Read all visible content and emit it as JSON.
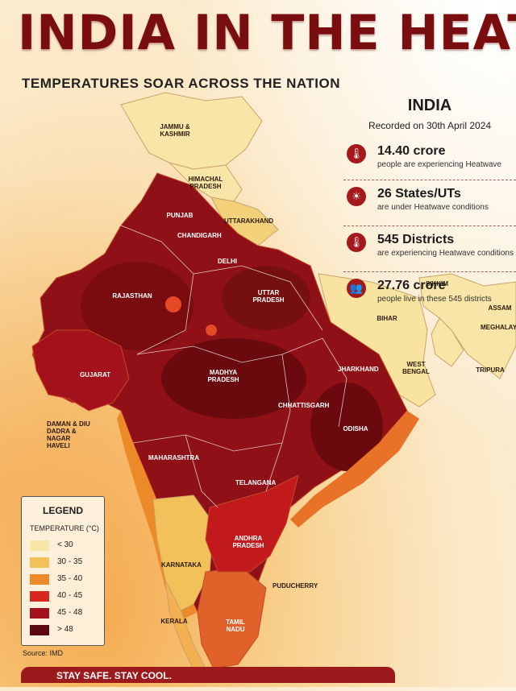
{
  "header": {
    "title": "INDIA IN THE HEAT",
    "subtitle": "TEMPERATURES SOAR ACROSS THE NATION"
  },
  "stats": {
    "title": "INDIA",
    "recorded": "Recorded on 30th April 2024",
    "items": [
      {
        "icon": "thermometer-icon",
        "glyph": "🌡",
        "value": "14.40 crore",
        "desc": "people are experiencing Heatwave"
      },
      {
        "icon": "sun-icon",
        "glyph": "☀",
        "value": "26 States/UTs",
        "desc": "are under Heatwave conditions"
      },
      {
        "icon": "thermometer-icon",
        "glyph": "🌡",
        "value": "545 Districts",
        "desc": "are experiencing Heatwave conditions"
      },
      {
        "icon": "people-icon",
        "glyph": "👥",
        "value": "27.76 crore",
        "desc": "people live in these 545 districts"
      }
    ]
  },
  "map": {
    "labels": {
      "jammu_kashmir": "JAMMU & KASHMIR",
      "himachal": "HIMACHAL PRADESH",
      "punjab": "PUNJAB",
      "chandigarh": "CHANDIGARH",
      "uttarakhand": "UTTARAKHAND",
      "delhi": "DELHI",
      "rajasthan": "RAJASTHAN",
      "uttar_pradesh": "UTTAR PRADESH",
      "sikkim": "SIKKIM",
      "assam": "ASSAM",
      "meghalaya": "MEGHALAYA",
      "bihar": "BIHAR",
      "gujarat": "GUJARAT",
      "madhya_pradesh": "MADHYA PRADESH",
      "jharkhand": "JHARKHAND",
      "west_bengal": "WEST BENGAL",
      "tripura": "TRIPURA",
      "daman": "DAMAN & DIU DADRA & NAGAR HAVELI",
      "chhattisgarh": "CHHATTISGARH",
      "odisha": "ODISHA",
      "maharashtra": "MAHARASHTRA",
      "telangana": "TELANGANA",
      "andhra": "ANDHRA PRADESH",
      "karnataka": "KARNATAKA",
      "puducherry": "PUDUCHERRY",
      "kerala": "KERALA",
      "tamil_nadu": "TAMIL NADU"
    }
  },
  "legend": {
    "title": "LEGEND",
    "unit": "TEMPERATURE (°C)",
    "items": [
      {
        "label": "< 30",
        "color": "#f8e6a8"
      },
      {
        "label": "30 - 35",
        "color": "#f3c15a"
      },
      {
        "label": "35 - 40",
        "color": "#ec8a2a"
      },
      {
        "label": "40 - 45",
        "color": "#d8281e"
      },
      {
        "label": "45 - 48",
        "color": "#a3121a"
      },
      {
        "label": "> 48",
        "color": "#5c0a0e"
      }
    ]
  },
  "source": "Source: IMD",
  "footer": "STAY SAFE. STAY COOL."
}
